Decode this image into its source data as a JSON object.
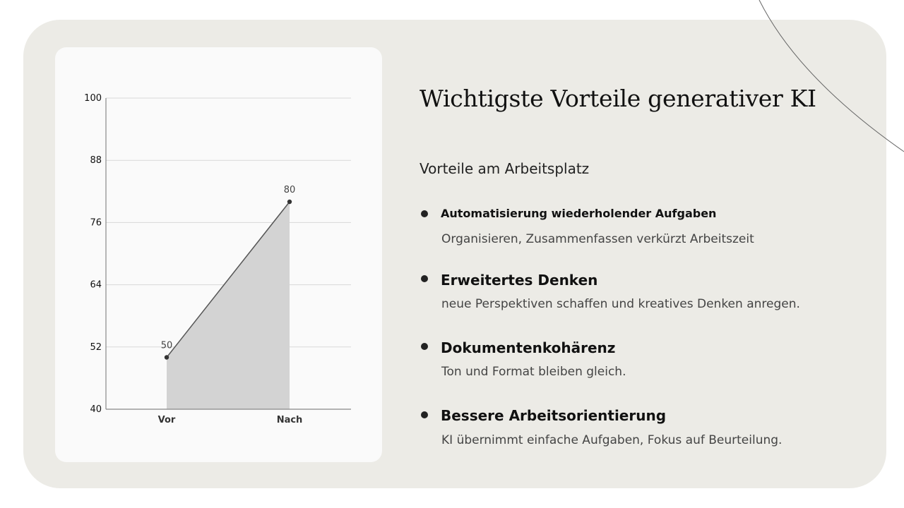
{
  "slide": {
    "title": "Wichtigste Vorteile generativer KI",
    "subtitle": "Vorteile am Arbeitsplatz",
    "items": [
      {
        "heading": "Automatisierung wiederholender Aufgaben",
        "description": "Organisieren, Zusammenfassen verkürzt Arbeitszeit"
      },
      {
        "heading": "Erweitertes Denken",
        "description": "neue Perspektiven schaffen und kreatives Denken anregen."
      },
      {
        "heading": "Dokumentenkohärenz",
        "description": "Ton und Format bleiben gleich."
      },
      {
        "heading": "Bessere Arbeitsorientierung",
        "description": "KI übernimmt einfache Aufgaben, Fokus auf Beurteilung."
      }
    ]
  },
  "colors": {
    "panel": "#ecebe6",
    "card": "#fafafa",
    "area": "#d3d3d3",
    "line": "#555555"
  },
  "chart_data": {
    "type": "area",
    "categories": [
      "Vor",
      "Nach"
    ],
    "values": [
      50,
      80
    ],
    "data_labels": [
      "50",
      "80"
    ],
    "yticks": [
      "40",
      "52",
      "64",
      "76",
      "88",
      "100"
    ],
    "ylim": [
      40,
      100
    ],
    "grid": true,
    "title": "",
    "xlabel": "",
    "ylabel": ""
  }
}
